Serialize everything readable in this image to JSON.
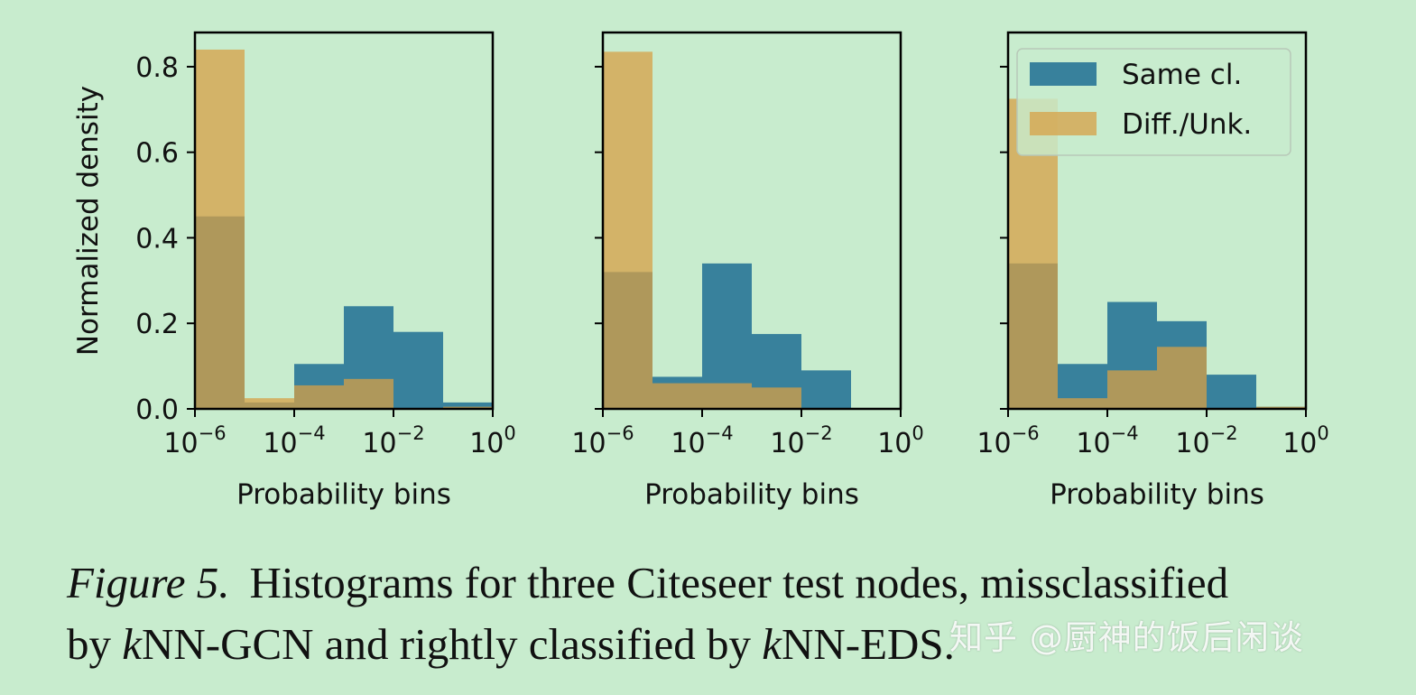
{
  "chart_data": [
    {
      "type": "bar",
      "xlabel": "Probability bins",
      "ylabel": "Normalized density",
      "x_scale": "log",
      "xlim": [
        1e-06,
        1
      ],
      "ylim": [
        0,
        0.88
      ],
      "x_ticks": [
        {
          "base": "10",
          "exp": "−6"
        },
        {
          "base": "10",
          "exp": "−4"
        },
        {
          "base": "10",
          "exp": "−2"
        },
        {
          "base": "10",
          "exp": "0"
        }
      ],
      "y_ticks": [
        "0.0",
        "0.2",
        "0.4",
        "0.6",
        "0.8"
      ],
      "bin_edges_log10": [
        -6,
        -5,
        -4,
        -3,
        -2,
        -1,
        0
      ],
      "series": [
        {
          "name": "Same cl.",
          "color": "#1f6f93",
          "values": [
            0.45,
            0.015,
            0.105,
            0.24,
            0.18,
            0.015
          ]
        },
        {
          "name": "Diff./Unk.",
          "color": "#d7a045",
          "values": [
            0.84,
            0.025,
            0.055,
            0.07,
            0.0,
            0.005
          ]
        }
      ]
    },
    {
      "type": "bar",
      "xlabel": "Probability bins",
      "x_scale": "log",
      "xlim": [
        1e-06,
        1
      ],
      "ylim": [
        0,
        0.88
      ],
      "x_ticks": [
        {
          "base": "10",
          "exp": "−6"
        },
        {
          "base": "10",
          "exp": "−4"
        },
        {
          "base": "10",
          "exp": "−2"
        },
        {
          "base": "10",
          "exp": "0"
        }
      ],
      "bin_edges_log10": [
        -6,
        -5,
        -4,
        -3,
        -2,
        -1,
        0
      ],
      "series": [
        {
          "name": "Same cl.",
          "color": "#1f6f93",
          "values": [
            0.32,
            0.075,
            0.34,
            0.175,
            0.09,
            0.0
          ]
        },
        {
          "name": "Diff./Unk.",
          "color": "#d7a045",
          "values": [
            0.835,
            0.06,
            0.06,
            0.05,
            0.0,
            0.0
          ]
        }
      ]
    },
    {
      "type": "bar",
      "xlabel": "Probability bins",
      "x_scale": "log",
      "xlim": [
        1e-06,
        1
      ],
      "ylim": [
        0,
        0.88
      ],
      "x_ticks": [
        {
          "base": "10",
          "exp": "−6"
        },
        {
          "base": "10",
          "exp": "−4"
        },
        {
          "base": "10",
          "exp": "−2"
        },
        {
          "base": "10",
          "exp": "0"
        }
      ],
      "bin_edges_log10": [
        -6,
        -5,
        -4,
        -3,
        -2,
        -1,
        0
      ],
      "legend": "top-right",
      "series": [
        {
          "name": "Same cl.",
          "color": "#1f6f93",
          "values": [
            0.34,
            0.105,
            0.25,
            0.205,
            0.08,
            0.005
          ]
        },
        {
          "name": "Diff./Unk.",
          "color": "#d7a045",
          "values": [
            0.725,
            0.025,
            0.09,
            0.145,
            0.0,
            0.005
          ]
        }
      ]
    }
  ],
  "caption": {
    "label": "Figure 5.",
    "line1": "Histograms for three Citeseer test nodes, missclassified",
    "l2_by": "by ",
    "l2_k1": "k",
    "l2_a": "NN-GCN and rightly classified by ",
    "l2_k2": "k",
    "l2_b": "NN-EDS."
  },
  "watermark": "知乎 @厨神的饭后闲谈"
}
